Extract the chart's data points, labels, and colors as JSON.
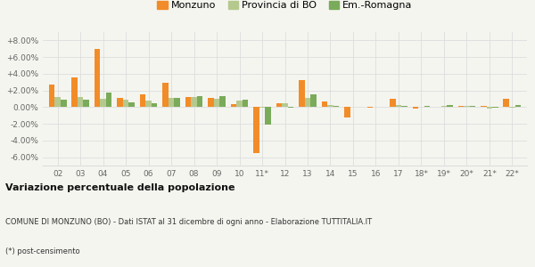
{
  "years": [
    "02",
    "03",
    "04",
    "05",
    "06",
    "07",
    "08",
    "09",
    "10",
    "11*",
    "12",
    "13",
    "14",
    "15",
    "16",
    "17",
    "18*",
    "19*",
    "20*",
    "21*",
    "22*"
  ],
  "monzuno": [
    2.7,
    3.6,
    7.0,
    1.1,
    1.5,
    2.9,
    1.2,
    1.1,
    0.35,
    -5.5,
    0.5,
    3.2,
    0.7,
    -1.2,
    -0.1,
    1.0,
    -0.2,
    0.0,
    0.1,
    0.2,
    1.0
  ],
  "provincia": [
    1.2,
    1.2,
    1.0,
    0.85,
    0.75,
    1.1,
    1.25,
    1.0,
    0.8,
    -0.1,
    0.45,
    1.1,
    0.3,
    0.05,
    0.0,
    0.3,
    0.0,
    0.2,
    0.1,
    -0.2,
    -0.1
  ],
  "emromagna": [
    0.85,
    0.85,
    1.75,
    0.55,
    0.5,
    1.1,
    1.35,
    1.3,
    0.9,
    -2.1,
    -0.1,
    1.55,
    0.2,
    0.0,
    0.05,
    0.15,
    0.1,
    0.3,
    0.2,
    -0.1,
    0.3
  ],
  "color_monzuno": "#f28c28",
  "color_provincia": "#b5c98e",
  "color_emromagna": "#7aab5a",
  "background": "#f5f5f0",
  "grid_color": "#dddddd",
  "ylim": [
    -7.0,
    9.0
  ],
  "yticks": [
    -6.0,
    -4.0,
    -2.0,
    0.0,
    2.0,
    4.0,
    6.0,
    8.0
  ],
  "ytick_labels": [
    "-6.00%",
    "-4.00%",
    "-2.00%",
    "0.00%",
    "+2.00%",
    "+4.00%",
    "+6.00%",
    "+8.00%"
  ],
  "title_bold": "Variazione percentuale della popolazione",
  "subtitle": "COMUNE DI MONZUNO (BO) - Dati ISTAT al 31 dicembre di ogni anno - Elaborazione TUTTITALIA.IT",
  "footnote": "(*) post-censimento",
  "legend_labels": [
    "Monzuno",
    "Provincia di BO",
    "Em.-Romagna"
  ]
}
